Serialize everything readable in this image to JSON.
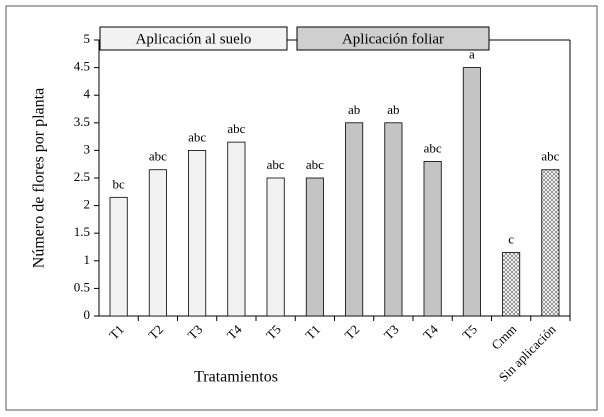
{
  "chart_data": {
    "type": "bar",
    "xlabel": "Tratamientos",
    "ylabel": "Número de flores por planta",
    "groups": [
      {
        "label": "Aplicación al suelo",
        "color": "#f2f2f2"
      },
      {
        "label": "Aplicación foliar",
        "color": "#cfcfcf"
      }
    ],
    "categories": [
      "T1",
      "T2",
      "T3",
      "T4",
      "T5",
      "T1",
      "T2",
      "T3",
      "T4",
      "T5",
      "Cmm",
      "Sin aplicación"
    ],
    "values": [
      2.15,
      2.65,
      3.0,
      3.15,
      2.5,
      2.5,
      3.5,
      3.5,
      2.8,
      4.5,
      1.15,
      2.65
    ],
    "value_labels": [
      "bc",
      "abc",
      "abc",
      "abc",
      "abc",
      "abc",
      "ab",
      "ab",
      "abc",
      "a",
      "c",
      "abc"
    ],
    "colors": [
      "#f2f2f2",
      "#f2f2f2",
      "#f2f2f2",
      "#f2f2f2",
      "#f2f2f2",
      "#c4c4c4",
      "#c4c4c4",
      "#c4c4c4",
      "#c4c4c4",
      "#c4c4c4",
      "#e6e6e6",
      "#f4f4f4"
    ],
    "hatched": [
      false,
      false,
      false,
      false,
      false,
      false,
      false,
      false,
      false,
      false,
      true,
      true
    ],
    "ylim": [
      0,
      5
    ],
    "yticks": [
      0,
      0.5,
      1,
      1.5,
      2,
      2.5,
      3,
      3.5,
      4,
      4.5,
      5
    ]
  }
}
